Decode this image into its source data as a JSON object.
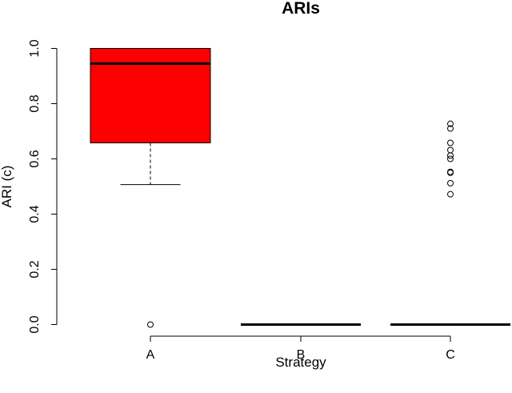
{
  "chart_data": {
    "type": "boxplot",
    "title": "ARIs",
    "xlabel": "Strategy",
    "ylabel": "ARI (c)",
    "ylim": [
      0,
      1
    ],
    "yticks": [
      "0.0",
      "0.2",
      "0.4",
      "0.6",
      "0.8",
      "1.0"
    ],
    "categories": [
      "A",
      "B",
      "C"
    ],
    "colors": {
      "box_fill": "#ff0000",
      "line": "#000000",
      "background": "#ffffff"
    },
    "boxes": [
      {
        "category": "A",
        "whisker_low": 0.507,
        "q1": 0.658,
        "median": 0.945,
        "q3": 1.0,
        "whisker_high": 1.0,
        "outliers": [
          0.0
        ]
      },
      {
        "category": "B",
        "whisker_low": 0.0,
        "q1": 0.0,
        "median": 0.0,
        "q3": 0.0,
        "whisker_high": 0.0,
        "outliers": []
      },
      {
        "category": "C",
        "whisker_low": 0.0,
        "q1": 0.0,
        "median": 0.0,
        "q3": 0.0,
        "whisker_high": 0.0,
        "outliers": [
          0.727,
          0.71,
          0.658,
          0.632,
          0.612,
          0.6,
          0.553,
          0.55,
          0.512,
          0.472
        ]
      }
    ],
    "grid": false,
    "legend": "none"
  }
}
